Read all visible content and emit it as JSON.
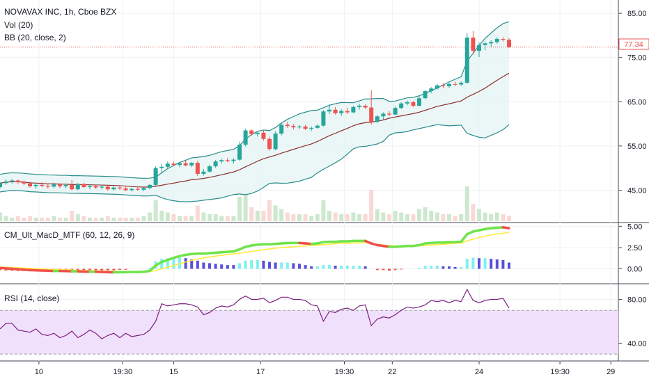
{
  "chart_data": [
    {
      "type": "candlestick",
      "title": "NOVAVAX INC, 1h, Cboe BZX",
      "indicators": [
        "Vol (20)",
        "BB (20, close, 2)"
      ],
      "y_ticks": [
        "85.00",
        "75.00",
        "65.00",
        "55.00",
        "45.00"
      ],
      "ylim": [
        38,
        88
      ],
      "last_price": "77.34",
      "colors": {
        "up": "#26a69a",
        "down": "#ef5350",
        "bb_band": "#2a8c8c",
        "bb_basis": "#8b2e2e",
        "bb_fill": "#e3f4f2"
      },
      "candles": [
        [
          45.7,
          46.8,
          45.4,
          46.6
        ],
        [
          46.6,
          47.5,
          46.2,
          47.0
        ],
        [
          47.0,
          47.6,
          46.5,
          47.2
        ],
        [
          47.2,
          47.4,
          46.4,
          46.8
        ],
        [
          46.8,
          47.2,
          46.1,
          46.5
        ],
        [
          46.5,
          46.9,
          45.6,
          45.9
        ],
        [
          45.9,
          46.6,
          45.3,
          46.2
        ],
        [
          46.2,
          46.8,
          45.7,
          46.0
        ],
        [
          46.0,
          46.4,
          45.4,
          45.8
        ],
        [
          45.8,
          46.7,
          45.5,
          46.3
        ],
        [
          46.3,
          46.6,
          45.5,
          45.9
        ],
        [
          45.9,
          46.5,
          45.4,
          46.2
        ],
        [
          46.2,
          47.3,
          45.0,
          45.2
        ],
        [
          45.2,
          46.6,
          45.0,
          46.4
        ],
        [
          46.4,
          46.7,
          45.5,
          45.7
        ],
        [
          45.7,
          46.2,
          45.2,
          45.9
        ],
        [
          45.9,
          46.3,
          45.3,
          45.6
        ],
        [
          45.6,
          46.1,
          45.1,
          45.8
        ],
        [
          45.8,
          46.2,
          44.9,
          45.2
        ],
        [
          45.2,
          45.9,
          44.9,
          45.6
        ],
        [
          45.6,
          46.0,
          45.1,
          45.4
        ],
        [
          45.4,
          45.8,
          44.8,
          45.0
        ],
        [
          45.0,
          45.6,
          44.7,
          45.3
        ],
        [
          45.3,
          45.8,
          44.9,
          45.1
        ],
        [
          45.1,
          45.7,
          44.8,
          45.5
        ],
        [
          45.5,
          46.4,
          45.2,
          46.2
        ],
        [
          46.2,
          50.4,
          46.0,
          50.0
        ],
        [
          50.0,
          50.9,
          49.0,
          50.3
        ],
        [
          50.3,
          51.5,
          49.8,
          51.0
        ],
        [
          51.0,
          51.5,
          50.4,
          50.7
        ],
        [
          50.7,
          51.3,
          50.2,
          51.1
        ],
        [
          51.1,
          51.7,
          50.4,
          50.6
        ],
        [
          50.6,
          51.4,
          50.2,
          51.2
        ],
        [
          51.2,
          51.6,
          48.2,
          48.7
        ],
        [
          48.7,
          49.8,
          48.3,
          49.2
        ],
        [
          49.2,
          50.8,
          48.9,
          50.4
        ],
        [
          50.4,
          51.8,
          50.1,
          51.5
        ],
        [
          51.5,
          52.1,
          51.0,
          51.8
        ],
        [
          51.8,
          52.3,
          51.3,
          51.6
        ],
        [
          51.6,
          52.2,
          51.0,
          51.9
        ],
        [
          51.9,
          56.0,
          51.7,
          55.3
        ],
        [
          55.3,
          58.9,
          54.9,
          58.5
        ],
        [
          58.5,
          58.7,
          57.3,
          57.7
        ],
        [
          57.7,
          58.4,
          57.1,
          58.0
        ],
        [
          58.0,
          58.6,
          56.2,
          56.6
        ],
        [
          56.6,
          57.1,
          53.9,
          54.3
        ],
        [
          54.3,
          58.3,
          54.0,
          57.8
        ],
        [
          57.8,
          60.3,
          57.4,
          59.8
        ],
        [
          59.8,
          60.4,
          59.1,
          59.5
        ],
        [
          59.5,
          60.0,
          58.7,
          59.2
        ],
        [
          59.2,
          59.7,
          58.8,
          59.4
        ],
        [
          59.4,
          59.8,
          58.6,
          58.9
        ],
        [
          58.9,
          59.4,
          58.4,
          59.1
        ],
        [
          59.1,
          59.9,
          58.9,
          59.6
        ],
        [
          59.6,
          63.1,
          59.4,
          62.8
        ],
        [
          62.8,
          64.4,
          62.2,
          63.2
        ],
        [
          63.2,
          63.8,
          62.1,
          62.4
        ],
        [
          62.4,
          63.3,
          61.8,
          62.9
        ],
        [
          62.9,
          63.6,
          62.2,
          62.6
        ],
        [
          62.6,
          64.1,
          62.4,
          63.8
        ],
        [
          63.8,
          64.6,
          63.2,
          64.1
        ],
        [
          64.1,
          64.4,
          63.4,
          63.7
        ],
        [
          63.7,
          67.6,
          59.8,
          60.5
        ],
        [
          60.5,
          62.0,
          60.1,
          61.7
        ],
        [
          61.7,
          62.6,
          61.0,
          62.3
        ],
        [
          62.3,
          62.9,
          61.7,
          62.1
        ],
        [
          62.1,
          63.9,
          61.9,
          63.6
        ],
        [
          63.6,
          64.9,
          63.3,
          64.6
        ],
        [
          64.6,
          65.3,
          64.2,
          64.9
        ],
        [
          64.9,
          65.2,
          63.8,
          64.1
        ],
        [
          64.1,
          66.2,
          63.9,
          65.8
        ],
        [
          65.8,
          67.6,
          65.5,
          67.4
        ],
        [
          67.4,
          68.3,
          66.9,
          68.0
        ],
        [
          68.0,
          69.0,
          67.7,
          68.7
        ],
        [
          68.7,
          69.2,
          68.1,
          68.5
        ],
        [
          68.5,
          69.3,
          68.2,
          69.0
        ],
        [
          69.0,
          69.6,
          68.5,
          68.9
        ],
        [
          68.9,
          69.6,
          68.6,
          69.3
        ],
        [
          69.3,
          80.5,
          69.1,
          79.5
        ],
        [
          79.5,
          81.0,
          75.7,
          76.5
        ],
        [
          76.5,
          78.4,
          75.1,
          77.8
        ],
        [
          77.8,
          78.6,
          76.6,
          78.2
        ],
        [
          78.2,
          78.9,
          77.4,
          78.5
        ],
        [
          78.5,
          79.6,
          78.1,
          79.2
        ],
        [
          79.2,
          79.6,
          78.6,
          79.0
        ],
        [
          79.0,
          79.4,
          77.1,
          77.34
        ]
      ],
      "volume": [
        5,
        3,
        2,
        3,
        2,
        3,
        2,
        2,
        2,
        3,
        2,
        2,
        6,
        4,
        3,
        2,
        2,
        2,
        3,
        2,
        2,
        2,
        2,
        2,
        3,
        5,
        12,
        6,
        5,
        4,
        3,
        3,
        3,
        9,
        5,
        4,
        4,
        3,
        3,
        3,
        14,
        16,
        8,
        6,
        6,
        12,
        9,
        7,
        5,
        4,
        4,
        4,
        3,
        4,
        12,
        6,
        5,
        4,
        4,
        5,
        4,
        4,
        18,
        7,
        5,
        4,
        6,
        5,
        4,
        4,
        7,
        8,
        6,
        5,
        4,
        4,
        3,
        4,
        20,
        10,
        7,
        5,
        4,
        5,
        4,
        3
      ]
    },
    {
      "type": "line",
      "title": "CM_Ult_MacD_MTF (60, 12, 26, 9)",
      "y_ticks": [
        "5.00",
        "2.50",
        "0.00"
      ],
      "ylim": [
        -1.6,
        5.3
      ],
      "colors": {
        "macd_up": "#6fe34a",
        "macd_down": "#f0504a",
        "signal": "#ffeb3b",
        "hist_pos": "#7ef0f0",
        "hist_pos_dark": "#5a4fd6",
        "hist_neg": "#f0504a"
      },
      "macd": [
        0.1,
        0.05,
        0.0,
        -0.05,
        -0.1,
        -0.15,
        -0.18,
        -0.2,
        -0.22,
        -0.25,
        -0.25,
        -0.27,
        -0.3,
        -0.3,
        -0.33,
        -0.35,
        -0.35,
        -0.38,
        -0.4,
        -0.42,
        -0.4,
        -0.4,
        -0.38,
        -0.38,
        -0.35,
        -0.25,
        0.4,
        0.8,
        1.05,
        1.3,
        1.5,
        1.65,
        1.75,
        1.8,
        1.8,
        1.85,
        1.9,
        1.95,
        2.0,
        2.05,
        2.3,
        2.6,
        2.75,
        2.85,
        2.9,
        2.9,
        2.95,
        3.0,
        3.05,
        3.05,
        3.05,
        3.0,
        2.95,
        3.0,
        3.15,
        3.2,
        3.2,
        3.25,
        3.25,
        3.3,
        3.3,
        3.3,
        3.0,
        2.8,
        2.7,
        2.6,
        2.6,
        2.65,
        2.7,
        2.7,
        2.8,
        3.0,
        3.05,
        3.1,
        3.1,
        3.15,
        3.15,
        3.2,
        4.1,
        4.4,
        4.55,
        4.7,
        4.8,
        4.85,
        4.9,
        4.8
      ],
      "signal": [
        0.2,
        0.18,
        0.15,
        0.12,
        0.08,
        0.05,
        0.02,
        -0.02,
        -0.05,
        -0.08,
        -0.1,
        -0.12,
        -0.15,
        -0.18,
        -0.2,
        -0.22,
        -0.24,
        -0.26,
        -0.28,
        -0.3,
        -0.32,
        -0.33,
        -0.34,
        -0.34,
        -0.34,
        -0.33,
        -0.2,
        0.0,
        0.2,
        0.4,
        0.6,
        0.8,
        1.0,
        1.15,
        1.3,
        1.4,
        1.5,
        1.6,
        1.7,
        1.75,
        1.85,
        1.95,
        2.05,
        2.15,
        2.25,
        2.35,
        2.45,
        2.5,
        2.55,
        2.6,
        2.65,
        2.7,
        2.75,
        2.8,
        2.85,
        2.9,
        2.95,
        3.0,
        3.0,
        3.05,
        3.05,
        3.1,
        3.0,
        2.9,
        2.8,
        2.75,
        2.7,
        2.7,
        2.7,
        2.7,
        2.72,
        2.75,
        2.8,
        2.85,
        2.9,
        2.95,
        3.0,
        3.05,
        3.3,
        3.5,
        3.7,
        3.85,
        4.0,
        4.1,
        4.2,
        4.3
      ]
    },
    {
      "type": "line",
      "title": "RSI (14, close)",
      "y_ticks": [
        "80.00",
        "40.00"
      ],
      "ylim": [
        25,
        93
      ],
      "band": [
        30,
        70
      ],
      "colors": {
        "line": "#7b1f7f",
        "band_fill": "#f1e0fb"
      },
      "values": [
        53,
        58,
        58,
        52,
        51,
        50,
        53,
        48,
        47,
        49,
        45,
        47,
        51,
        45,
        48,
        52,
        49,
        44,
        47,
        49,
        45,
        49,
        46,
        47,
        48,
        52,
        60,
        76,
        74,
        75,
        76,
        76,
        75,
        73,
        66,
        68,
        72,
        74,
        73,
        75,
        80,
        83,
        80,
        80,
        81,
        77,
        79,
        82,
        82,
        80,
        80,
        79,
        75,
        74,
        60,
        69,
        68,
        71,
        72,
        70,
        74,
        75,
        56,
        62,
        64,
        63,
        66,
        70,
        73,
        72,
        73,
        75,
        79,
        78,
        79,
        77,
        79,
        78,
        89,
        79,
        77,
        79,
        80,
        80,
        81,
        72
      ]
    }
  ],
  "x_ticks": [
    "10",
    "19:30",
    "15",
    "17",
    "19:30",
    "22",
    "24",
    "19:30",
    "29"
  ]
}
